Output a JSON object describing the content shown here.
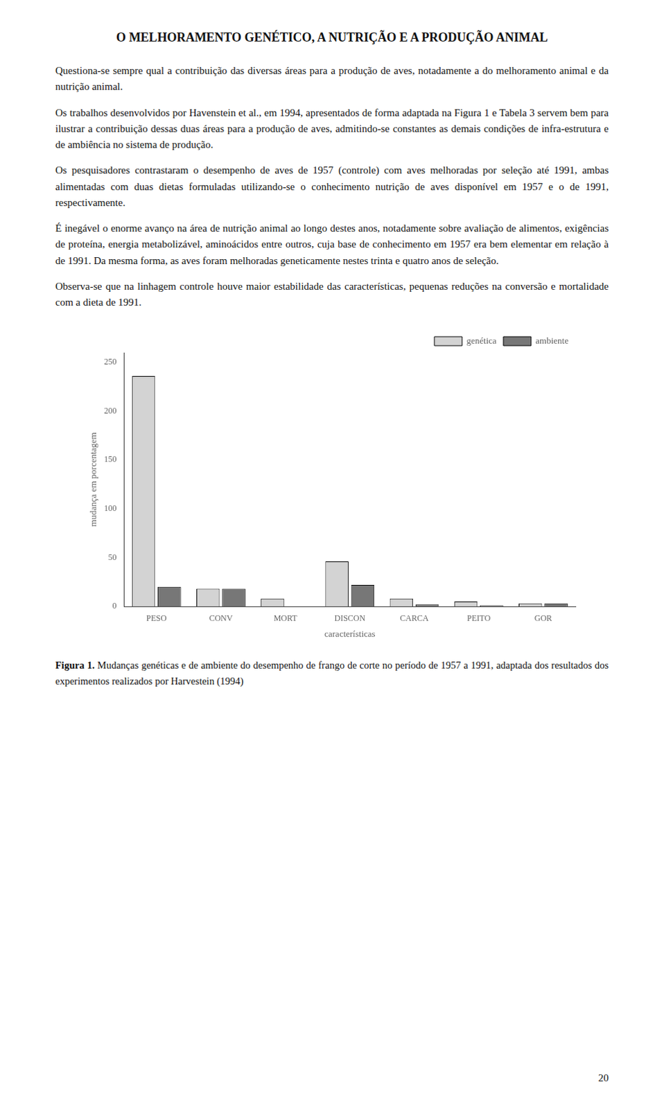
{
  "chart_data": {
    "type": "bar",
    "title": "O MELHORAMENTO GENÉTICO, A NUTRIÇÃO E A PRODUÇÃO ANIMAL",
    "annotations": [
      "Questiona-se sempre qual a contribuição das diversas áreas para a produção de aves, notadamente a do melhoramento animal e da nutrição animal.",
      "Os trabalhos desenvolvidos por Havenstein et al., em 1994, apresentados de forma adaptada na Figura 1 e Tabela 3 servem bem para ilustrar a contribuição dessas duas áreas para a produção de aves, admitindo-se constantes as demais condições de infra-estrutura e de ambiência no sistema de produção.",
      "Os pesquisadores contrastaram o desempenho de aves de 1957 (controle) com aves melhoradas por seleção até 1991, ambas alimentadas com duas dietas formuladas utilizando-se o conhecimento nutrição de aves disponível em 1957 e o de 1991, respectivamente.",
      "É inegável o enorme avanço na área de nutrição animal ao longo destes anos, notadamente sobre avaliação de alimentos, exigências de proteína, energia metabolizável, aminoácidos entre outros, cuja base de conhecimento em 1957 era bem elementar em relação à de 1991. Da mesma forma, as aves foram melhoradas geneticamente nestes trinta e quatro anos de seleção.",
      "Observa-se que na linhagem controle houve maior estabilidade das características, pequenas reduções na conversão e mortalidade com a dieta de 1991.",
      "Figura 1. Mudanças genéticas e de ambiente do desempenho de frango de corte no período de 1957 a 1991, adaptada dos resultados dos experimentos realizados por Harvestein (1994)",
      "20"
    ],
    "categories": [
      "PESO",
      "CONV",
      "MORT",
      "DISCON",
      "CARCA",
      "PEITO",
      "GOR"
    ],
    "series": [
      {
        "name": "genética",
        "color": "#d3d3d3",
        "values": [
          236,
          18,
          8,
          46,
          8,
          5,
          3
        ]
      },
      {
        "name": "ambiente",
        "color": "#777777",
        "values": [
          20,
          18,
          0,
          22,
          2,
          1,
          3
        ]
      }
    ],
    "xlabel": "características",
    "ylabel": "mudança em porcentagem",
    "ylim": [
      0,
      260
    ],
    "yticks": [
      0,
      50,
      100,
      150,
      200,
      250
    ],
    "grid": false,
    "legend": "upper right"
  }
}
